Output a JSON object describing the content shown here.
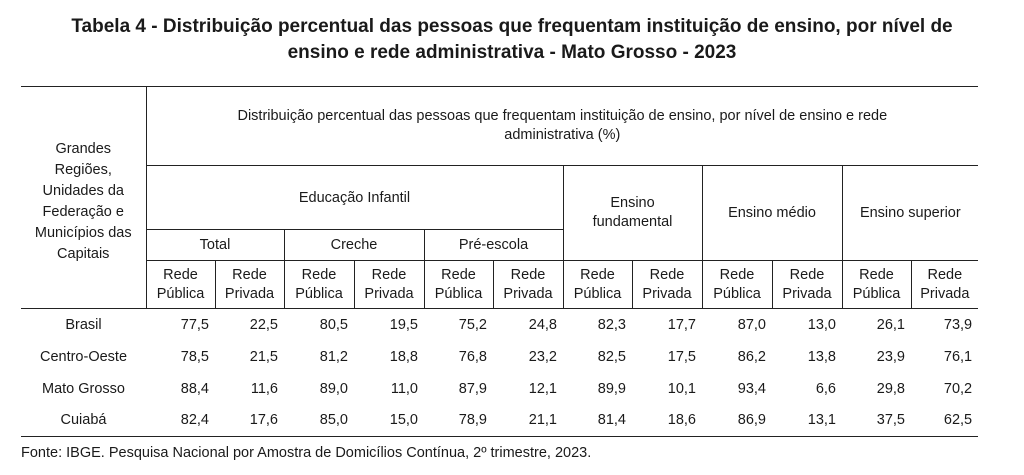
{
  "title_line1": "Tabela 4 - Distribuição percentual das pessoas que frequentam instituição de ensino, por nível de",
  "title_line2": "ensino e rede administrativa - Mato Grosso - 2023",
  "row_header": [
    "Grandes",
    "Regiões,",
    "Unidades da",
    "Federação e",
    "Municípios das",
    "Capitais"
  ],
  "main_header_line1": "Distribuição percentual das pessoas que frequentam instituição de ensino, por nível de ensino e rede",
  "main_header_line2": "administrativa (%)",
  "educacao_infantil": "Educação Infantil",
  "ensino_fundamental_line1": "Ensino",
  "ensino_fundamental_line2": "fundamental",
  "ensino_medio": "Ensino médio",
  "ensino_superior": "Ensino superior",
  "total": "Total",
  "creche": "Creche",
  "pre_escola": "Pré-escola",
  "rede_label": "Rede",
  "publica_label": "Pública",
  "privada_label": "Privada",
  "rows": [
    {
      "name": "Brasil",
      "values": [
        "77,5",
        "22,5",
        "80,5",
        "19,5",
        "75,2",
        "24,8",
        "82,3",
        "17,7",
        "87,0",
        "13,0",
        "26,1",
        "73,9"
      ]
    },
    {
      "name": "Centro-Oeste",
      "values": [
        "78,5",
        "21,5",
        "81,2",
        "18,8",
        "76,8",
        "23,2",
        "82,5",
        "17,5",
        "86,2",
        "13,8",
        "23,9",
        "76,1"
      ]
    },
    {
      "name": "Mato Grosso",
      "values": [
        "88,4",
        "11,6",
        "89,0",
        "11,0",
        "87,9",
        "12,1",
        "89,9",
        "10,1",
        "93,4",
        "6,6",
        "29,8",
        "70,2"
      ]
    },
    {
      "name": "Cuiabá",
      "values": [
        "82,4",
        "17,6",
        "85,0",
        "15,0",
        "78,9",
        "21,1",
        "81,4",
        "18,6",
        "86,9",
        "13,1",
        "37,5",
        "62,5"
      ]
    }
  ],
  "footnote": "Fonte: IBGE. Pesquisa Nacional por Amostra de Domicílios Contínua, 2º trimestre, 2023."
}
